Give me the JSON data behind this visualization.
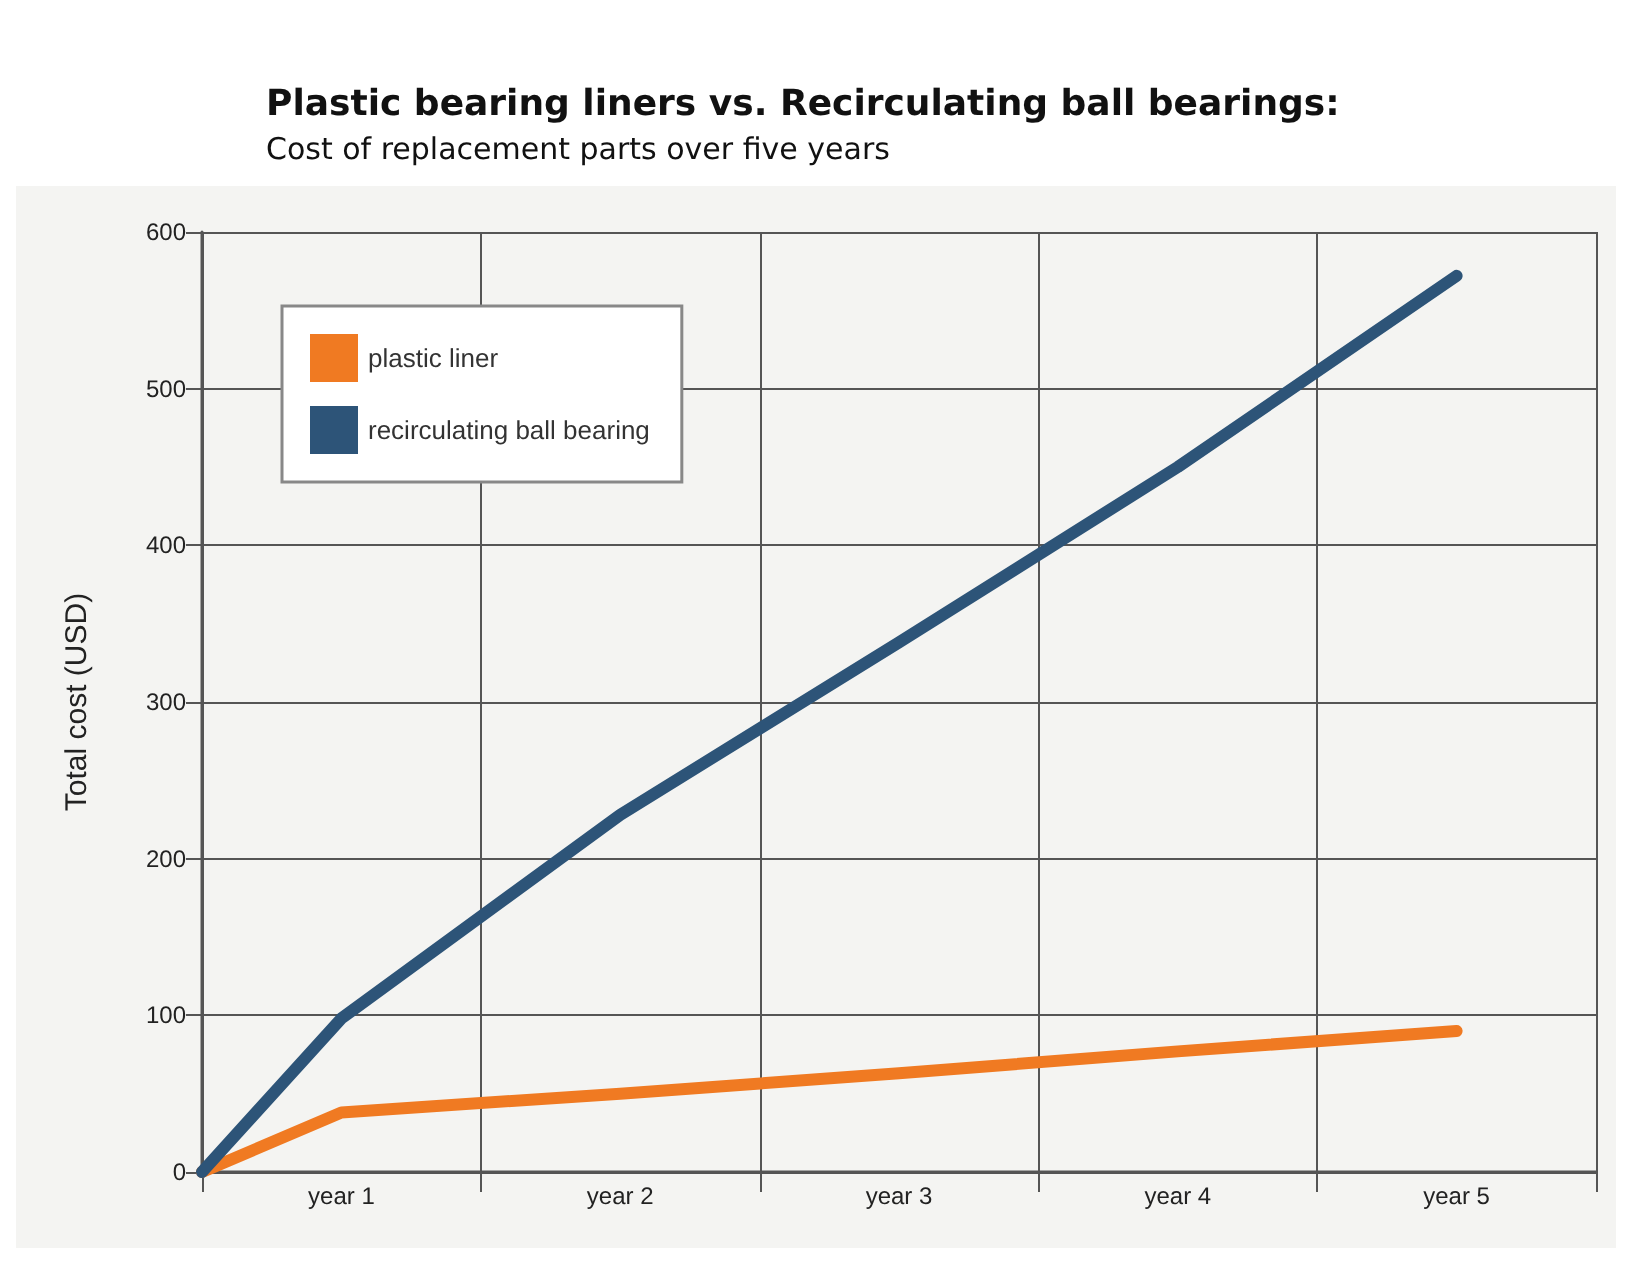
{
  "chart_data": {
    "type": "line",
    "title": "Plastic bearing liners vs. Recirculating ball bearings:",
    "subtitle": "Cost of replacement parts over five years",
    "ylabel": "Total cost (USD)",
    "categories": [
      null,
      "year 1",
      null,
      "year 2",
      null,
      "year 3",
      null,
      "year 4",
      null,
      "year 5",
      null
    ],
    "series": [
      {
        "name": "plastic liner",
        "color": "#f07a22",
        "values": [
          0,
          38,
          null,
          50,
          null,
          63,
          null,
          77,
          null,
          90,
          null
        ]
      },
      {
        "name": "recirculating ball bearing",
        "color": "#2d5478",
        "values": [
          0,
          98,
          null,
          228,
          null,
          338,
          null,
          450,
          null,
          572,
          null
        ]
      }
    ],
    "ylim": [
      0,
      600
    ],
    "yticks": [
      0,
      100,
      200,
      300,
      400,
      500,
      600
    ],
    "grid": true,
    "legend": "top left",
    "marker": "none",
    "line_style": "solid"
  }
}
